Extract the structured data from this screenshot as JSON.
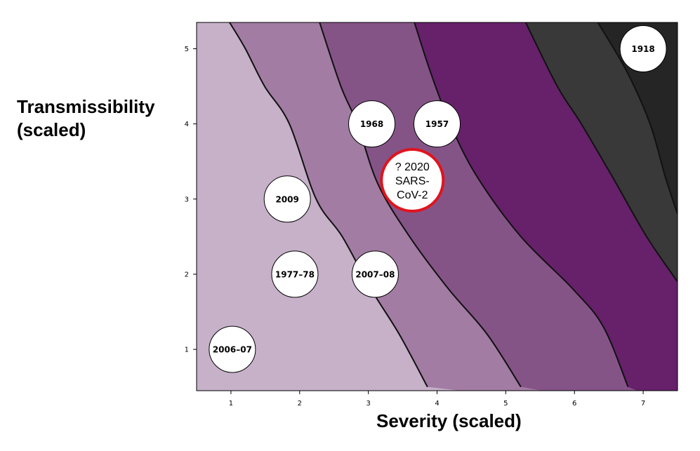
{
  "chart_data": {
    "type": "scatter",
    "title": "",
    "xlabel": "Severity (scaled)",
    "ylabel": "Transmissibility\n(scaled)",
    "xlim": [
      0.5,
      7.5
    ],
    "ylim": [
      0.45,
      5.35
    ],
    "xticks": [
      1,
      2,
      3,
      4,
      5,
      6,
      7
    ],
    "yticks": [
      1,
      2,
      3,
      4,
      5
    ],
    "grid": false,
    "zone_colors": [
      "#c6b1c9",
      "#a27ca3",
      "#855487",
      "#66216a",
      "#393939",
      "#252525"
    ],
    "zone_boundaries": [
      {
        "x": [
          0.98,
          1.21,
          1.49,
          1.85,
          2.24,
          2.62,
          3.04,
          3.45,
          3.86
        ],
        "y": [
          5.35,
          5.0,
          4.5,
          4.0,
          3.0,
          2.5,
          1.8,
          1.2,
          0.5
        ]
      },
      {
        "x": [
          2.29,
          2.6,
          2.84,
          3.14,
          3.6,
          4.17,
          4.73,
          5.22
        ],
        "y": [
          5.35,
          4.5,
          4.0,
          3.2,
          2.5,
          1.8,
          1.2,
          0.5
        ]
      },
      {
        "x": [
          3.67,
          3.9,
          4.19,
          4.58,
          5.22,
          5.98,
          6.42,
          6.78
        ],
        "y": [
          5.35,
          4.7,
          4.0,
          3.3,
          2.5,
          1.8,
          1.3,
          0.5
        ]
      },
      {
        "x": [
          5.29,
          5.75,
          6.1,
          6.55,
          7.05,
          7.5
        ],
        "y": [
          5.35,
          4.5,
          4.0,
          3.3,
          2.5,
          1.9
        ]
      },
      {
        "x": [
          6.34,
          6.76,
          7.1,
          7.32,
          7.5
        ],
        "y": [
          5.35,
          4.7,
          4.0,
          3.3,
          2.8
        ]
      }
    ],
    "points": [
      {
        "label": "1918",
        "x": 7.0,
        "y": 5.0
      },
      {
        "label": "1968",
        "x": 3.05,
        "y": 4.0
      },
      {
        "label": "1957",
        "x": 4.0,
        "y": 4.0
      },
      {
        "label": "2009",
        "x": 1.82,
        "y": 3.0
      },
      {
        "label": "1977–78",
        "x": 1.93,
        "y": 2.0
      },
      {
        "label": "2007–08",
        "x": 3.1,
        "y": 2.0
      },
      {
        "label": "2006–07",
        "x": 1.02,
        "y": 1.0
      }
    ],
    "highlight": {
      "lines": [
        "? 2020",
        "SARS-",
        "CoV-2"
      ],
      "x": 3.64,
      "y": 3.25,
      "ring_color": "#e0141e"
    }
  }
}
